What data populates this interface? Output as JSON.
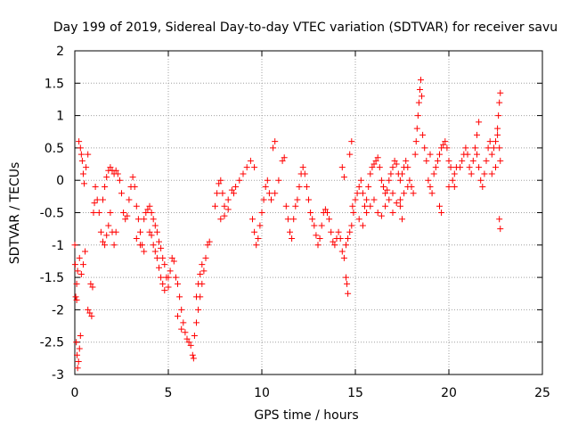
{
  "chart_data": {
    "type": "scatter",
    "title": "Day 199 of 2019, Sidereal Day-to-day VTEC variation (SDTVAR) for receiver savu",
    "xlabel": "GPS time / hours",
    "ylabel": "SDTVAR / TECUs",
    "xlim": [
      0,
      25
    ],
    "ylim": [
      -3,
      2
    ],
    "xticks": [
      0,
      5,
      10,
      15,
      20,
      25
    ],
    "yticks": [
      -3,
      -2.5,
      -2,
      -1.5,
      -1,
      -0.5,
      0,
      0.5,
      1,
      1.5,
      2
    ],
    "xtick_labels": [
      "0",
      "5",
      "10",
      "15",
      "20",
      "25"
    ],
    "ytick_labels": [
      "-3",
      "-2.5",
      "-2",
      "-1.5",
      "-1",
      "-0.5",
      "0",
      "0.5",
      "1",
      "1.5",
      "2"
    ],
    "grid": true,
    "marker": "+",
    "color": "#ff0000",
    "series": [
      {
        "name": "SDTVAR",
        "points": [
          [
            0.0,
            -1.0
          ],
          [
            0.02,
            -1.3
          ],
          [
            0.05,
            -1.8
          ],
          [
            0.08,
            -2.5
          ],
          [
            0.12,
            -2.7
          ],
          [
            0.15,
            -2.9
          ],
          [
            0.2,
            -2.8
          ],
          [
            0.25,
            -2.6
          ],
          [
            0.3,
            -2.4
          ],
          [
            0.1,
            -1.6
          ],
          [
            0.15,
            -1.4
          ],
          [
            0.25,
            -1.2
          ],
          [
            0.35,
            -1.45
          ],
          [
            0.45,
            -1.3
          ],
          [
            0.55,
            -1.1
          ],
          [
            0.1,
            -1.85
          ],
          [
            0.22,
            0.6
          ],
          [
            0.3,
            0.5
          ],
          [
            0.4,
            0.3
          ],
          [
            0.45,
            0.1
          ],
          [
            0.5,
            -0.05
          ],
          [
            0.35,
            0.4
          ],
          [
            0.6,
            0.2
          ],
          [
            0.7,
            0.4
          ],
          [
            0.7,
            -2.0
          ],
          [
            0.8,
            -2.05
          ],
          [
            0.9,
            -2.1
          ],
          [
            0.85,
            -1.6
          ],
          [
            0.95,
            -1.65
          ],
          [
            1.0,
            -0.5
          ],
          [
            1.05,
            -0.35
          ],
          [
            1.1,
            -0.1
          ],
          [
            1.2,
            -0.3
          ],
          [
            1.3,
            -0.5
          ],
          [
            1.4,
            -0.8
          ],
          [
            1.5,
            -0.95
          ],
          [
            1.6,
            -1.0
          ],
          [
            1.7,
            -0.85
          ],
          [
            1.8,
            -0.7
          ],
          [
            1.9,
            -0.5
          ],
          [
            2.0,
            -0.8
          ],
          [
            2.1,
            -1.0
          ],
          [
            2.2,
            -0.8
          ],
          [
            1.5,
            -0.3
          ],
          [
            1.6,
            -0.1
          ],
          [
            1.7,
            0.05
          ],
          [
            1.8,
            0.15
          ],
          [
            1.9,
            0.2
          ],
          [
            2.0,
            0.15
          ],
          [
            2.1,
            0.1
          ],
          [
            2.2,
            0.15
          ],
          [
            2.3,
            0.1
          ],
          [
            2.4,
            0.0
          ],
          [
            2.5,
            -0.2
          ],
          [
            2.6,
            -0.5
          ],
          [
            2.7,
            -0.6
          ],
          [
            2.8,
            -0.55
          ],
          [
            2.9,
            -0.3
          ],
          [
            3.0,
            -0.1
          ],
          [
            3.1,
            0.05
          ],
          [
            3.2,
            -0.1
          ],
          [
            3.3,
            -0.4
          ],
          [
            3.4,
            -0.6
          ],
          [
            3.5,
            -0.8
          ],
          [
            3.6,
            -1.0
          ],
          [
            3.7,
            -1.1
          ],
          [
            3.3,
            -0.9
          ],
          [
            3.5,
            -1.0
          ],
          [
            3.7,
            -0.6
          ],
          [
            3.8,
            -0.5
          ],
          [
            3.9,
            -0.45
          ],
          [
            4.0,
            -0.4
          ],
          [
            4.1,
            -0.5
          ],
          [
            4.2,
            -0.6
          ],
          [
            4.3,
            -0.7
          ],
          [
            4.4,
            -0.8
          ],
          [
            4.5,
            -0.95
          ],
          [
            4.6,
            -1.05
          ],
          [
            4.7,
            -1.2
          ],
          [
            4.8,
            -1.3
          ],
          [
            4.9,
            -1.5
          ],
          [
            5.0,
            -1.65
          ],
          [
            4.0,
            -0.8
          ],
          [
            4.1,
            -0.85
          ],
          [
            4.2,
            -1.0
          ],
          [
            4.3,
            -1.1
          ],
          [
            4.4,
            -1.2
          ],
          [
            4.5,
            -1.35
          ],
          [
            4.6,
            -1.5
          ],
          [
            4.7,
            -1.6
          ],
          [
            4.8,
            -1.7
          ],
          [
            5.0,
            -1.5
          ],
          [
            5.1,
            -1.4
          ],
          [
            5.2,
            -1.2
          ],
          [
            5.3,
            -1.25
          ],
          [
            5.4,
            -1.5
          ],
          [
            5.5,
            -1.6
          ],
          [
            5.6,
            -1.8
          ],
          [
            5.7,
            -2.0
          ],
          [
            5.8,
            -2.2
          ],
          [
            5.9,
            -2.35
          ],
          [
            6.0,
            -2.45
          ],
          [
            5.5,
            -2.1
          ],
          [
            5.7,
            -2.3
          ],
          [
            6.1,
            -2.5
          ],
          [
            6.2,
            -2.55
          ],
          [
            6.3,
            -2.7
          ],
          [
            6.35,
            -2.75
          ],
          [
            6.4,
            -2.4
          ],
          [
            6.5,
            -2.2
          ],
          [
            6.6,
            -2.0
          ],
          [
            6.7,
            -1.8
          ],
          [
            6.8,
            -1.6
          ],
          [
            6.9,
            -1.4
          ],
          [
            7.0,
            -1.2
          ],
          [
            7.1,
            -1.0
          ],
          [
            7.2,
            -0.95
          ],
          [
            6.5,
            -1.8
          ],
          [
            6.6,
            -1.6
          ],
          [
            6.7,
            -1.45
          ],
          [
            6.8,
            -1.3
          ],
          [
            7.5,
            -0.4
          ],
          [
            7.6,
            -0.2
          ],
          [
            7.7,
            -0.05
          ],
          [
            7.8,
            0.0
          ],
          [
            7.9,
            -0.2
          ],
          [
            8.0,
            -0.4
          ],
          [
            8.2,
            -0.3
          ],
          [
            8.4,
            -0.15
          ],
          [
            8.6,
            -0.1
          ],
          [
            8.8,
            0.0
          ],
          [
            9.0,
            0.1
          ],
          [
            9.2,
            0.2
          ],
          [
            9.4,
            0.3
          ],
          [
            9.6,
            0.2
          ],
          [
            7.8,
            -0.6
          ],
          [
            8.0,
            -0.55
          ],
          [
            8.2,
            -0.45
          ],
          [
            8.5,
            -0.2
          ],
          [
            9.5,
            -0.6
          ],
          [
            9.6,
            -0.8
          ],
          [
            9.7,
            -1.0
          ],
          [
            9.8,
            -0.9
          ],
          [
            9.9,
            -0.7
          ],
          [
            10.0,
            -0.5
          ],
          [
            10.1,
            -0.3
          ],
          [
            10.2,
            -0.1
          ],
          [
            10.3,
            0.0
          ],
          [
            10.4,
            -0.2
          ],
          [
            10.5,
            -0.3
          ],
          [
            10.7,
            -0.2
          ],
          [
            10.9,
            0.0
          ],
          [
            11.1,
            0.3
          ],
          [
            11.2,
            0.35
          ],
          [
            10.6,
            0.5
          ],
          [
            10.7,
            0.6
          ],
          [
            11.3,
            -0.4
          ],
          [
            11.4,
            -0.6
          ],
          [
            11.5,
            -0.8
          ],
          [
            11.6,
            -0.9
          ],
          [
            11.7,
            -0.6
          ],
          [
            11.8,
            -0.4
          ],
          [
            11.9,
            -0.3
          ],
          [
            12.0,
            -0.1
          ],
          [
            12.1,
            0.1
          ],
          [
            12.2,
            0.2
          ],
          [
            12.3,
            0.1
          ],
          [
            12.4,
            -0.1
          ],
          [
            12.5,
            -0.3
          ],
          [
            12.6,
            -0.5
          ],
          [
            12.7,
            -0.6
          ],
          [
            12.8,
            -0.7
          ],
          [
            12.9,
            -0.85
          ],
          [
            13.0,
            -1.0
          ],
          [
            13.1,
            -0.9
          ],
          [
            13.2,
            -0.7
          ],
          [
            13.3,
            -0.5
          ],
          [
            13.4,
            -0.45
          ],
          [
            13.5,
            -0.5
          ],
          [
            13.6,
            -0.6
          ],
          [
            13.7,
            -0.8
          ],
          [
            13.8,
            -0.95
          ],
          [
            13.9,
            -1.0
          ],
          [
            14.0,
            -0.9
          ],
          [
            14.1,
            -0.8
          ],
          [
            14.2,
            -0.9
          ],
          [
            14.3,
            -1.1
          ],
          [
            14.4,
            -1.2
          ],
          [
            14.5,
            -1.0
          ],
          [
            14.6,
            -0.9
          ],
          [
            14.7,
            -0.8
          ],
          [
            14.8,
            -0.7
          ],
          [
            14.9,
            -0.5
          ],
          [
            14.3,
            0.2
          ],
          [
            14.4,
            0.05
          ],
          [
            14.5,
            -1.5
          ],
          [
            14.55,
            -1.6
          ],
          [
            14.6,
            -1.75
          ],
          [
            14.7,
            0.4
          ],
          [
            14.8,
            0.6
          ],
          [
            14.85,
            -0.4
          ],
          [
            15.0,
            -0.3
          ],
          [
            15.1,
            -0.2
          ],
          [
            15.2,
            -0.1
          ],
          [
            15.3,
            0.0
          ],
          [
            15.4,
            -0.2
          ],
          [
            15.5,
            -0.4
          ],
          [
            15.6,
            -0.3
          ],
          [
            15.7,
            -0.1
          ],
          [
            15.8,
            0.1
          ],
          [
            15.9,
            0.2
          ],
          [
            16.0,
            0.25
          ],
          [
            16.1,
            0.3
          ],
          [
            16.2,
            0.35
          ],
          [
            16.3,
            0.2
          ],
          [
            16.4,
            0.0
          ],
          [
            16.5,
            -0.1
          ],
          [
            16.6,
            -0.2
          ],
          [
            16.7,
            -0.15
          ],
          [
            16.8,
            0.0
          ],
          [
            16.9,
            0.1
          ],
          [
            17.0,
            0.2
          ],
          [
            17.1,
            0.3
          ],
          [
            17.2,
            0.25
          ],
          [
            17.3,
            0.1
          ],
          [
            17.4,
            0.0
          ],
          [
            17.5,
            0.1
          ],
          [
            17.6,
            0.2
          ],
          [
            17.7,
            0.3
          ],
          [
            17.8,
            0.2
          ],
          [
            17.9,
            0.0
          ],
          [
            18.0,
            -0.1
          ],
          [
            18.1,
            -0.2
          ],
          [
            15.2,
            -0.6
          ],
          [
            15.4,
            -0.7
          ],
          [
            15.6,
            -0.5
          ],
          [
            15.8,
            -0.4
          ],
          [
            16.0,
            -0.3
          ],
          [
            16.2,
            -0.5
          ],
          [
            16.4,
            -0.55
          ],
          [
            16.6,
            -0.4
          ],
          [
            16.8,
            -0.3
          ],
          [
            17.0,
            -0.2
          ],
          [
            17.2,
            -0.35
          ],
          [
            17.4,
            -0.4
          ],
          [
            17.6,
            -0.2
          ],
          [
            17.8,
            -0.1
          ],
          [
            17.0,
            -0.5
          ],
          [
            17.5,
            -0.6
          ],
          [
            17.4,
            -0.3
          ],
          [
            18.2,
            0.4
          ],
          [
            18.25,
            0.6
          ],
          [
            18.3,
            0.8
          ],
          [
            18.35,
            1.0
          ],
          [
            18.4,
            1.2
          ],
          [
            18.45,
            1.4
          ],
          [
            18.5,
            1.55
          ],
          [
            18.55,
            1.3
          ],
          [
            18.6,
            0.7
          ],
          [
            18.7,
            0.5
          ],
          [
            18.8,
            0.3
          ],
          [
            18.9,
            0.0
          ],
          [
            19.0,
            -0.1
          ],
          [
            19.1,
            -0.2
          ],
          [
            19.0,
            0.4
          ],
          [
            19.2,
            0.1
          ],
          [
            19.3,
            0.2
          ],
          [
            19.4,
            0.3
          ],
          [
            19.5,
            0.4
          ],
          [
            19.6,
            0.5
          ],
          [
            19.7,
            0.55
          ],
          [
            19.8,
            0.6
          ],
          [
            19.9,
            0.5
          ],
          [
            20.0,
            0.3
          ],
          [
            20.1,
            0.2
          ],
          [
            20.2,
            0.0
          ],
          [
            20.3,
            0.1
          ],
          [
            20.4,
            0.2
          ],
          [
            19.5,
            -0.4
          ],
          [
            19.6,
            -0.5
          ],
          [
            20.0,
            -0.1
          ],
          [
            20.3,
            -0.1
          ],
          [
            20.6,
            0.2
          ],
          [
            20.7,
            0.3
          ],
          [
            20.8,
            0.4
          ],
          [
            20.9,
            0.5
          ],
          [
            21.0,
            0.4
          ],
          [
            21.1,
            0.2
          ],
          [
            21.2,
            0.1
          ],
          [
            21.3,
            0.3
          ],
          [
            21.4,
            0.5
          ],
          [
            21.5,
            0.4
          ],
          [
            21.6,
            0.2
          ],
          [
            21.7,
            0.0
          ],
          [
            21.8,
            -0.1
          ],
          [
            21.5,
            0.7
          ],
          [
            21.6,
            0.9
          ],
          [
            21.9,
            0.1
          ],
          [
            22.0,
            0.3
          ],
          [
            22.1,
            0.5
          ],
          [
            22.2,
            0.6
          ],
          [
            22.3,
            0.4
          ],
          [
            22.4,
            0.5
          ],
          [
            22.5,
            0.6
          ],
          [
            22.6,
            0.7
          ],
          [
            22.7,
            0.5
          ],
          [
            22.75,
            0.3
          ],
          [
            22.3,
            0.1
          ],
          [
            22.5,
            0.2
          ],
          [
            22.6,
            0.8
          ],
          [
            22.65,
            1.0
          ],
          [
            22.7,
            1.2
          ],
          [
            22.75,
            1.35
          ],
          [
            22.7,
            -0.6
          ],
          [
            22.75,
            -0.75
          ]
        ]
      }
    ]
  }
}
